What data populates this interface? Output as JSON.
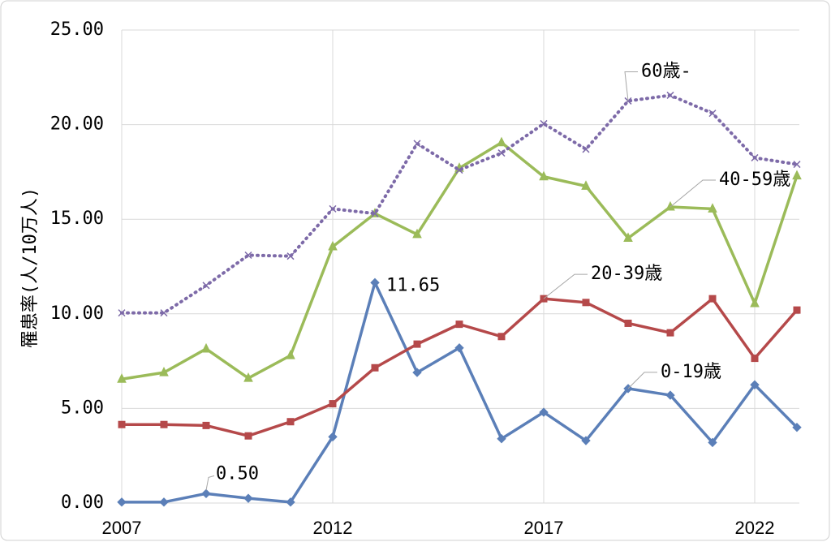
{
  "chart_data": {
    "type": "line",
    "y_label": "罹患率(人/10万人)",
    "x": [
      2007,
      2008,
      2009,
      2010,
      2011,
      2012,
      2013,
      2014,
      2015,
      2016,
      2017,
      2018,
      2019,
      2020,
      2021,
      2022,
      2023
    ],
    "xlim": [
      2007,
      2023
    ],
    "xticks": [
      2007,
      2012,
      2017,
      2022
    ],
    "ylim": [
      0,
      25
    ],
    "yticks": [
      {
        "value": 0,
        "label": "0.00"
      },
      {
        "value": 5,
        "label": "5.00"
      },
      {
        "value": 10,
        "label": "10.00"
      },
      {
        "value": 15,
        "label": "15.00"
      },
      {
        "value": 20,
        "label": "20.00"
      },
      {
        "value": 25,
        "label": "25.00"
      }
    ],
    "grid": true,
    "series": [
      {
        "name": "0-19歳",
        "color": "#5b7fb8",
        "marker": "diamond",
        "dash": "solid",
        "values": [
          0.05,
          0.05,
          0.5,
          0.25,
          0.05,
          3.5,
          11.65,
          6.9,
          8.2,
          3.4,
          4.8,
          3.3,
          6.05,
          5.7,
          3.2,
          6.25,
          4.0
        ],
        "value_labels": [
          null,
          null,
          "0.50",
          null,
          null,
          null,
          "11.65",
          null,
          null,
          null,
          null,
          null,
          null,
          null,
          null,
          null,
          null
        ]
      },
      {
        "name": "20-39歳",
        "color": "#b5494a",
        "marker": "square",
        "dash": "solid",
        "values": [
          4.15,
          4.15,
          4.1,
          3.55,
          4.3,
          5.25,
          7.15,
          8.4,
          9.45,
          8.8,
          10.8,
          10.6,
          9.5,
          9.0,
          10.8,
          7.65,
          10.2
        ]
      },
      {
        "name": "40-59歳",
        "color": "#9bbb59",
        "marker": "triangle",
        "dash": "solid",
        "values": [
          6.55,
          6.9,
          8.15,
          6.6,
          7.8,
          13.55,
          15.3,
          14.2,
          17.7,
          19.05,
          17.25,
          16.75,
          14.0,
          15.65,
          15.55,
          10.55,
          17.3
        ]
      },
      {
        "name": "60歳-",
        "color": "#7d6aa8",
        "marker": "x",
        "dash": "dotted",
        "values": [
          10.05,
          10.05,
          11.5,
          13.1,
          13.05,
          15.55,
          15.3,
          19.0,
          17.6,
          18.5,
          20.05,
          18.7,
          21.25,
          21.55,
          20.6,
          18.25,
          17.9
        ]
      }
    ]
  }
}
